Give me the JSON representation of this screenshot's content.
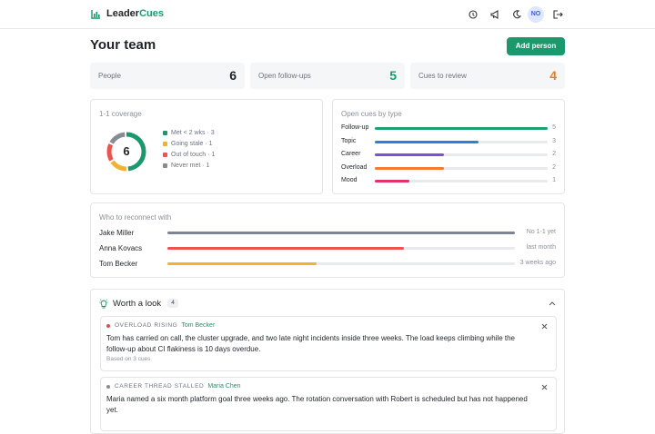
{
  "header": {
    "brand_main": "Leader",
    "brand_accent": "Cues",
    "avatar": "NO"
  },
  "title": "Your team",
  "add_button": "Add person",
  "stats": [
    {
      "label": "People",
      "value": 6,
      "color": "#1f2328"
    },
    {
      "label": "Open follow-ups",
      "value": 5,
      "color": "#1a9a6c"
    },
    {
      "label": "Cues to review",
      "value": 4,
      "color": "#f07a1a"
    }
  ],
  "coverage": {
    "title": "1-1 coverage",
    "total": 6,
    "segments": [
      {
        "label": "Met < 2 wks · 3",
        "value": 3,
        "color": "#1a9a6c"
      },
      {
        "label": "Going stale · 1",
        "value": 1,
        "color": "#f2b12e"
      },
      {
        "label": "Out of touch · 1",
        "value": 1,
        "color": "#ef5350"
      },
      {
        "label": "Never met · 1",
        "value": 1,
        "color": "#878c94"
      }
    ]
  },
  "cues_by_type": {
    "title": "Open cues by type",
    "categories": [
      "Follow-up",
      "Topic",
      "Career",
      "Overload",
      "Mood"
    ],
    "values": [
      5,
      3,
      2,
      2,
      1
    ],
    "colors": [
      "#1aa36f",
      "#2f7fd6",
      "#7b4fd8",
      "#f47c2c",
      "#e0336a"
    ]
  },
  "reconnect": {
    "title": "Who to reconnect with",
    "people": [
      {
        "name": "Jake Miller",
        "status": "No 1-1 yet",
        "fill": 1,
        "color": "#7d8590"
      },
      {
        "name": "Anna Kovacs",
        "status": "last month",
        "fill": 0.68,
        "color": "#ef5350"
      },
      {
        "name": "Tom Becker",
        "status": "3 weeks ago",
        "fill": 0.43,
        "color": "#f2b12e"
      }
    ]
  },
  "worth_a_look": {
    "title": "Worth a look",
    "count": 4,
    "cards": [
      {
        "tag": "OVERLOAD RISING",
        "tag_color": "#ef4444",
        "person": "Tom Becker",
        "text": "Tom has carried on call, the cluster upgrade, and two late night incidents inside three weeks. The load keeps climbing while the follow-up about CI flakiness is 10 days overdue.",
        "footnote": "Based on 3 cues"
      },
      {
        "tag": "CAREER THREAD STALLED",
        "tag_color": "#878c94",
        "person": "Maria Chen",
        "text": "Maria named a six month platform goal three weeks ago. The rotation conversation with Robert is scheduled but has not happened yet."
      }
    ]
  }
}
